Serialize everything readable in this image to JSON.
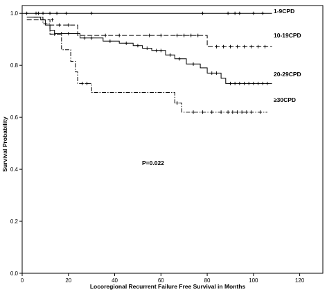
{
  "chart_data": {
    "type": "line",
    "subtype": "kaplan-meier",
    "title": "",
    "xlabel": "Locoregional Recurrent Failure Free Survival in Months",
    "ylabel": "Survival Probability",
    "xlim": [
      0,
      130
    ],
    "ylim": [
      0.0,
      1.03
    ],
    "xticks": [
      0,
      20,
      40,
      60,
      80,
      100,
      120
    ],
    "yticks": [
      0.0,
      0.2,
      0.4,
      0.6,
      0.8,
      1.0
    ],
    "xtick_labels": [
      "0",
      "20",
      "40",
      "60",
      "80",
      "100",
      "120"
    ],
    "ytick_labels": [
      "0.0",
      "0.2",
      "0.4",
      "0.6",
      "0.8",
      "1.0"
    ],
    "grid": false,
    "legend": "none (series labelled at line ends)",
    "annotation": "P=0.022",
    "series": [
      {
        "name": "1-9CPD",
        "dash": "solid",
        "steps": [
          [
            0,
            1.0
          ],
          [
            108,
            1.0
          ]
        ],
        "censored": [
          [
            2,
            1.0
          ],
          [
            6,
            1.0
          ],
          [
            7,
            1.0
          ],
          [
            9,
            1.0
          ],
          [
            12,
            1.0
          ],
          [
            15,
            1.0
          ],
          [
            19,
            1.0
          ],
          [
            30,
            1.0
          ],
          [
            78,
            1.0
          ],
          [
            89,
            1.0
          ],
          [
            92,
            1.0
          ],
          [
            94,
            1.0
          ],
          [
            100,
            1.0
          ],
          [
            104,
            1.0
          ]
        ]
      },
      {
        "name": "10-19CPD",
        "dash": "long-dash",
        "steps": [
          [
            2,
            0.975
          ],
          [
            12,
            0.975
          ],
          [
            12,
            0.955
          ],
          [
            24,
            0.955
          ],
          [
            24,
            0.915
          ],
          [
            80,
            0.915
          ],
          [
            80,
            0.872
          ],
          [
            108,
            0.872
          ]
        ],
        "censored": [
          [
            13,
            0.975
          ],
          [
            16,
            0.955
          ],
          [
            20,
            0.955
          ],
          [
            36,
            0.915
          ],
          [
            42,
            0.915
          ],
          [
            55,
            0.915
          ],
          [
            60,
            0.915
          ],
          [
            67,
            0.915
          ],
          [
            70,
            0.915
          ],
          [
            73,
            0.915
          ],
          [
            76,
            0.915
          ],
          [
            84,
            0.872
          ],
          [
            87,
            0.872
          ],
          [
            90,
            0.872
          ],
          [
            93,
            0.872
          ],
          [
            96,
            0.872
          ],
          [
            99,
            0.872
          ],
          [
            102,
            0.872
          ],
          [
            105,
            0.872
          ]
        ]
      },
      {
        "name": "20-29CPD",
        "dash": "solid",
        "steps": [
          [
            2,
            0.985
          ],
          [
            8,
            0.985
          ],
          [
            8,
            0.975
          ],
          [
            10,
            0.975
          ],
          [
            10,
            0.955
          ],
          [
            12,
            0.955
          ],
          [
            12,
            0.935
          ],
          [
            14,
            0.935
          ],
          [
            14,
            0.922
          ],
          [
            25,
            0.922
          ],
          [
            25,
            0.905
          ],
          [
            35,
            0.905
          ],
          [
            35,
            0.893
          ],
          [
            42,
            0.893
          ],
          [
            42,
            0.885
          ],
          [
            48,
            0.885
          ],
          [
            48,
            0.876
          ],
          [
            52,
            0.876
          ],
          [
            52,
            0.866
          ],
          [
            56,
            0.866
          ],
          [
            56,
            0.857
          ],
          [
            62,
            0.857
          ],
          [
            62,
            0.84
          ],
          [
            66,
            0.84
          ],
          [
            66,
            0.825
          ],
          [
            71,
            0.825
          ],
          [
            71,
            0.805
          ],
          [
            77,
            0.805
          ],
          [
            77,
            0.79
          ],
          [
            80,
            0.79
          ],
          [
            80,
            0.77
          ],
          [
            86,
            0.77
          ],
          [
            86,
            0.75
          ],
          [
            88,
            0.75
          ],
          [
            88,
            0.73
          ],
          [
            108,
            0.73
          ]
        ],
        "censored": [
          [
            17,
            0.922
          ],
          [
            20,
            0.922
          ],
          [
            27,
            0.905
          ],
          [
            30,
            0.905
          ],
          [
            38,
            0.893
          ],
          [
            45,
            0.885
          ],
          [
            50,
            0.876
          ],
          [
            54,
            0.866
          ],
          [
            58,
            0.857
          ],
          [
            60,
            0.857
          ],
          [
            64,
            0.84
          ],
          [
            68,
            0.825
          ],
          [
            74,
            0.805
          ],
          [
            82,
            0.77
          ],
          [
            84,
            0.77
          ],
          [
            90,
            0.73
          ],
          [
            92,
            0.73
          ],
          [
            94,
            0.73
          ],
          [
            96,
            0.73
          ],
          [
            98,
            0.73
          ],
          [
            100,
            0.73
          ],
          [
            102,
            0.73
          ],
          [
            104,
            0.73
          ],
          [
            106,
            0.73
          ]
        ]
      },
      {
        "name": "≥30CPD",
        "dash": "dash-dot",
        "steps": [
          [
            5,
            0.985
          ],
          [
            9,
            0.985
          ],
          [
            9,
            0.96
          ],
          [
            12,
            0.96
          ],
          [
            12,
            0.92
          ],
          [
            17,
            0.92
          ],
          [
            17,
            0.86
          ],
          [
            21,
            0.86
          ],
          [
            21,
            0.815
          ],
          [
            23,
            0.815
          ],
          [
            23,
            0.775
          ],
          [
            24,
            0.775
          ],
          [
            24,
            0.73
          ],
          [
            30,
            0.73
          ],
          [
            30,
            0.695
          ],
          [
            66,
            0.695
          ],
          [
            66,
            0.655
          ],
          [
            69,
            0.655
          ],
          [
            69,
            0.62
          ],
          [
            106,
            0.62
          ]
        ],
        "censored": [
          [
            14,
            0.92
          ],
          [
            26,
            0.73
          ],
          [
            28,
            0.73
          ],
          [
            67,
            0.655
          ],
          [
            74,
            0.62
          ],
          [
            78,
            0.62
          ],
          [
            82,
            0.62
          ],
          [
            86,
            0.62
          ],
          [
            89,
            0.62
          ],
          [
            91,
            0.62
          ],
          [
            93,
            0.62
          ],
          [
            95,
            0.62
          ],
          [
            97,
            0.62
          ],
          [
            99,
            0.62
          ],
          [
            103,
            0.62
          ]
        ]
      }
    ]
  }
}
